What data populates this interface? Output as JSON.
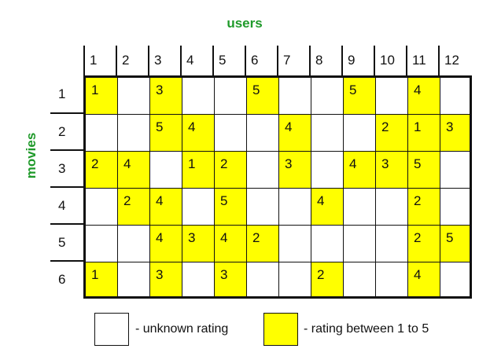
{
  "axis": {
    "columns_label": "users",
    "rows_label": "movies"
  },
  "columns": [
    "1",
    "2",
    "3",
    "4",
    "5",
    "6",
    "7",
    "8",
    "9",
    "10",
    "11",
    "12"
  ],
  "rows": [
    "1",
    "2",
    "3",
    "4",
    "5",
    "6"
  ],
  "ratings": [
    [
      "1",
      "",
      "3",
      "",
      "",
      "5",
      "",
      "",
      "5",
      "",
      "4",
      ""
    ],
    [
      "",
      "",
      "5",
      "4",
      "",
      "",
      "4",
      "",
      "",
      "2",
      "1",
      "3"
    ],
    [
      "2",
      "4",
      "",
      "1",
      "2",
      "",
      "3",
      "",
      "4",
      "3",
      "5",
      ""
    ],
    [
      "",
      "2",
      "4",
      "",
      "5",
      "",
      "",
      "4",
      "",
      "",
      "2",
      ""
    ],
    [
      "",
      "",
      "4",
      "3",
      "4",
      "2",
      "",
      "",
      "",
      "",
      "2",
      "5"
    ],
    [
      "1",
      "",
      "3",
      "",
      "3",
      "",
      "",
      "2",
      "",
      "",
      "4",
      ""
    ]
  ],
  "colors": {
    "rated": "#ffff00",
    "unknown": "#ffffff",
    "label_green": "#1f9a2a"
  },
  "legend": {
    "unknown": "- unknown rating",
    "rated": "- rating between 1 to 5"
  }
}
